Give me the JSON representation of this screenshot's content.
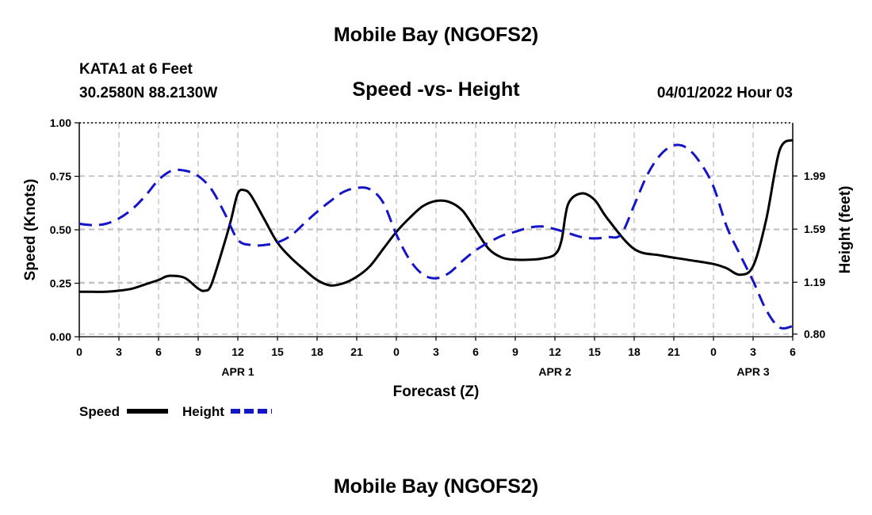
{
  "page_title": "Mobile Bay (NGOFS2)",
  "page_title_bottom": "Mobile Bay (NGOFS2)",
  "station": {
    "name": "KATA1 at 6 Feet",
    "coords": "30.2580N  88.2130W",
    "datetime": "04/01/2022 Hour 03"
  },
  "chart_data": {
    "type": "line",
    "title": "Speed -vs- Height",
    "xlabel": "Forecast (Z)",
    "ylabel": "Speed (Knots)",
    "y2label": "Height (feet)",
    "xlim": [
      0,
      54
    ],
    "ylim": [
      0,
      1
    ],
    "y2lim": [
      0.78,
      2.39
    ],
    "x_ticks": [
      0,
      3,
      6,
      9,
      12,
      15,
      18,
      21,
      24,
      27,
      30,
      33,
      36,
      39,
      42,
      45,
      48,
      51,
      54
    ],
    "x_tick_labels": [
      "0",
      "3",
      "6",
      "9",
      "12",
      "15",
      "18",
      "21",
      "0",
      "3",
      "6",
      "9",
      "12",
      "15",
      "18",
      "21",
      "0",
      "3",
      "6"
    ],
    "date_labels": [
      {
        "x": 12,
        "label": "APR 1"
      },
      {
        "x": 36,
        "label": "APR 2"
      },
      {
        "x": 51,
        "label": "APR 3"
      }
    ],
    "y_ticks": [
      0,
      0.25,
      0.5,
      0.75,
      1.0
    ],
    "y_tick_labels": [
      "0.00",
      "0.25",
      "0.50",
      "0.75",
      "1.00"
    ],
    "y2_ticks": [
      0.8,
      1.19,
      1.59,
      1.99
    ],
    "y2_tick_labels": [
      "0.80",
      "1.19",
      "1.59",
      "1.99"
    ],
    "grid": true,
    "series": [
      {
        "name": "Speed",
        "axis": "left",
        "color": "#000000",
        "dash": "solid",
        "x": [
          0,
          1,
          2,
          3,
          4,
          5,
          6,
          6.5,
          7,
          8,
          9,
          9.5,
          10,
          11,
          11.5,
          12,
          12.5,
          13,
          14,
          15,
          16,
          17,
          18,
          19,
          20,
          21,
          22,
          23,
          24,
          25,
          26,
          27,
          28,
          29,
          30,
          31,
          32,
          33,
          34,
          35,
          36,
          36.5,
          37,
          38,
          39,
          40,
          42,
          44,
          46,
          48,
          49,
          50,
          51,
          52,
          53,
          54
        ],
        "values": [
          0.21,
          0.21,
          0.21,
          0.215,
          0.225,
          0.245,
          0.265,
          0.28,
          0.285,
          0.275,
          0.225,
          0.215,
          0.245,
          0.44,
          0.55,
          0.67,
          0.685,
          0.66,
          0.55,
          0.44,
          0.37,
          0.315,
          0.265,
          0.24,
          0.25,
          0.28,
          0.33,
          0.41,
          0.49,
          0.555,
          0.61,
          0.635,
          0.63,
          0.59,
          0.5,
          0.41,
          0.37,
          0.36,
          0.36,
          0.365,
          0.385,
          0.45,
          0.62,
          0.67,
          0.64,
          0.55,
          0.41,
          0.38,
          0.36,
          0.34,
          0.32,
          0.29,
          0.33,
          0.55,
          0.87,
          0.92
        ]
      },
      {
        "name": "Height",
        "axis": "right",
        "color": "#1515c8",
        "dash": "dashed",
        "x": [
          0,
          1,
          2,
          3,
          4,
          5,
          6,
          7,
          8,
          9,
          10,
          11,
          12,
          13,
          14,
          15,
          16,
          17,
          18,
          19,
          20,
          21,
          22,
          23,
          24,
          25,
          26,
          27,
          28,
          29,
          30,
          31,
          32,
          33,
          34,
          35,
          36,
          37,
          38,
          39,
          40,
          41,
          42,
          43,
          44,
          45,
          46,
          47,
          48,
          49,
          50,
          51,
          52,
          53,
          54
        ],
        "values": [
          1.63,
          1.62,
          1.63,
          1.67,
          1.74,
          1.84,
          1.96,
          2.03,
          2.03,
          1.99,
          1.89,
          1.71,
          1.51,
          1.47,
          1.47,
          1.49,
          1.54,
          1.63,
          1.72,
          1.8,
          1.87,
          1.9,
          1.89,
          1.79,
          1.55,
          1.36,
          1.25,
          1.22,
          1.26,
          1.35,
          1.43,
          1.49,
          1.54,
          1.57,
          1.6,
          1.61,
          1.59,
          1.56,
          1.53,
          1.52,
          1.53,
          1.55,
          1.77,
          2.0,
          2.15,
          2.22,
          2.2,
          2.09,
          1.91,
          1.61,
          1.4,
          1.2,
          0.98,
          0.85,
          0.86
        ]
      }
    ],
    "legend": [
      {
        "label": "Speed",
        "color": "#000000",
        "dash": "solid"
      },
      {
        "label": "Height",
        "color": "#1515c8",
        "dash": "dashed"
      }
    ]
  }
}
